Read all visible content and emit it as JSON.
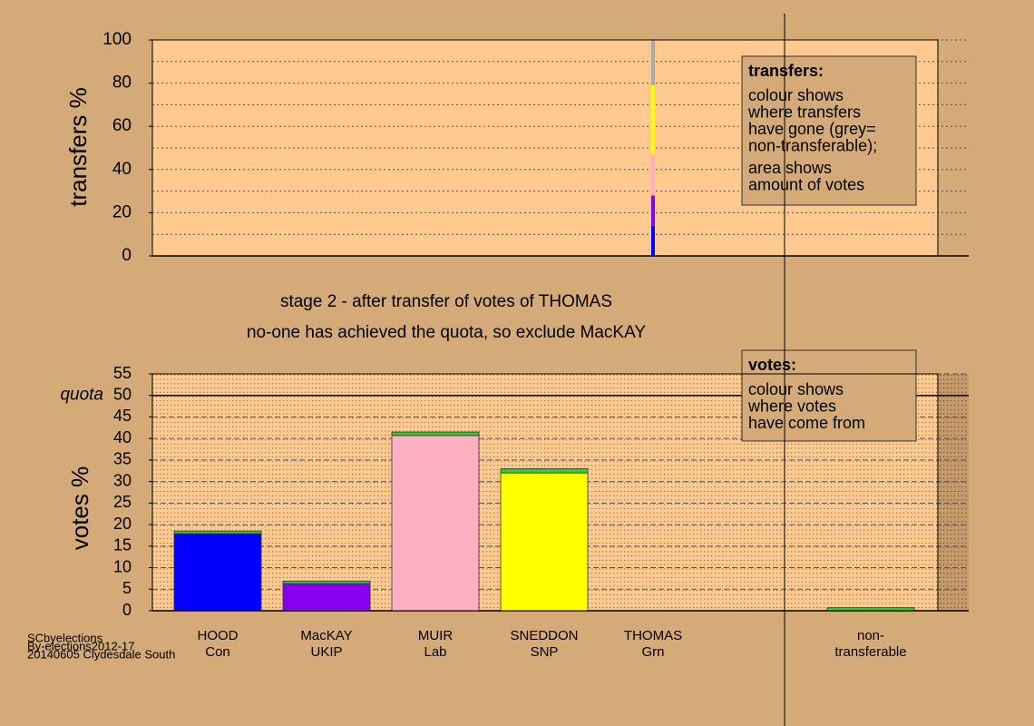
{
  "chart_data": [
    {
      "type": "bar",
      "stacked": true,
      "ylabel": "transfers %",
      "ylim": [
        0,
        100
      ],
      "yticks": [
        0,
        20,
        40,
        60,
        80,
        100
      ],
      "grid": true,
      "series": [
        {
          "color": "#0000ff",
          "values": [
            null,
            null,
            null,
            null,
            14,
            null,
            null
          ]
        },
        {
          "color": "#8800ee",
          "values": [
            null,
            null,
            null,
            null,
            14,
            null,
            null
          ]
        },
        {
          "color": "#ffb0c0",
          "values": [
            null,
            null,
            null,
            null,
            19,
            null,
            null
          ]
        },
        {
          "color": "#ffff00",
          "values": [
            null,
            null,
            null,
            null,
            32,
            null,
            null
          ]
        },
        {
          "color": "#aaaaaa",
          "values": [
            null,
            null,
            null,
            null,
            21,
            null,
            null
          ]
        }
      ],
      "annotation": {
        "title": "transfers:",
        "lines": [
          "colour shows",
          "where transfers",
          "have gone (grey=",
          "non-transferable);",
          "area shows",
          "amount of votes"
        ]
      }
    },
    {
      "type": "bar",
      "stacked": true,
      "ylabel": "votes %",
      "subtitle": [
        "stage 2 - after transfer of votes of THOMAS",
        "no-one has achieved the quota, so exclude MacKAY"
      ],
      "categories": [
        [
          "HOOD",
          "Con"
        ],
        [
          "MacKAY",
          "UKIP"
        ],
        [
          "MUIR",
          "Lab"
        ],
        [
          "SNEDDON",
          "SNP"
        ],
        [
          "THOMAS",
          "Grn"
        ],
        null,
        [
          "non-",
          "transferable"
        ]
      ],
      "ylim": [
        0,
        55
      ],
      "yticks": [
        0,
        5,
        10,
        15,
        20,
        25,
        30,
        35,
        40,
        45,
        50,
        55
      ],
      "grid": true,
      "quota": {
        "value": 50,
        "label": "quota"
      },
      "series": [
        {
          "colors": [
            "#0000ff",
            "#8800ee",
            "#ffb0c0",
            "#ffff00",
            "#33cc33",
            null,
            "#aaaaaa"
          ],
          "values": [
            17.9,
            6.3,
            40.7,
            32,
            null,
            null,
            null
          ]
        },
        {
          "color": "#33cc33",
          "values": [
            0.6,
            0.6,
            0.8,
            1.0,
            null,
            null,
            0.7
          ]
        }
      ],
      "annotation": {
        "title": "votes:",
        "lines": [
          "colour shows",
          "where votes",
          "have come from"
        ]
      },
      "footer": [
        "SCbyelections",
        "By-elections2012-17",
        "20140605 Clydesdale South"
      ]
    }
  ]
}
